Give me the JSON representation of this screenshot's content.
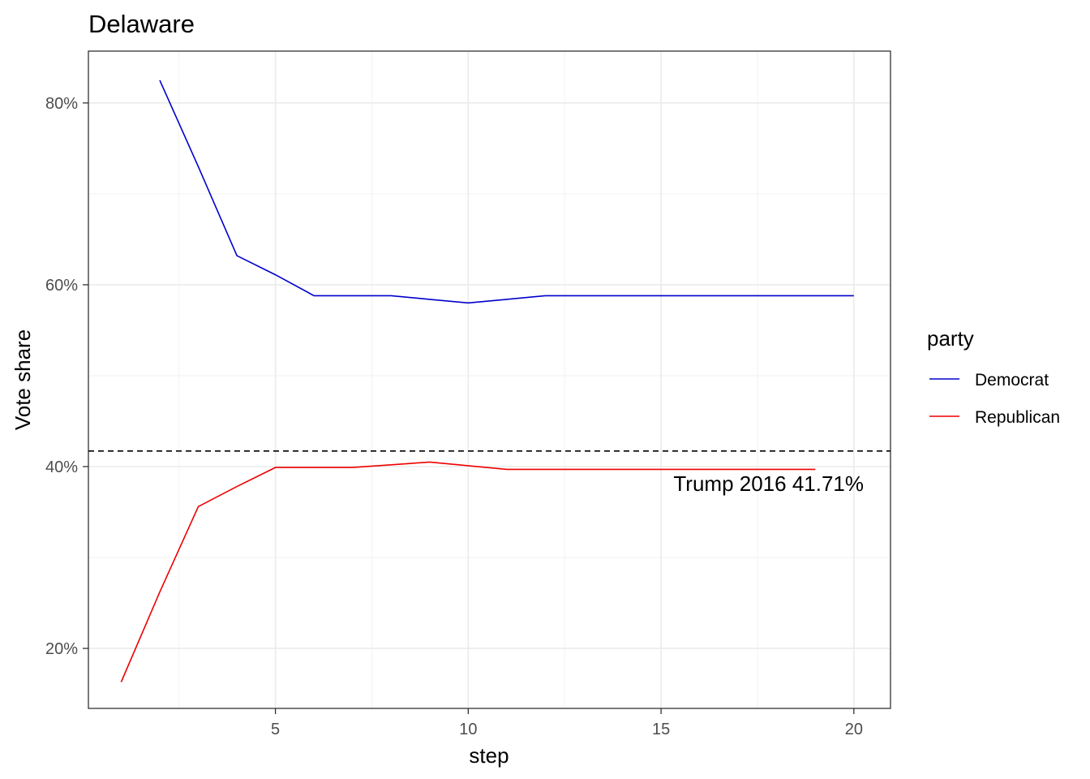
{
  "chart_data": {
    "type": "line",
    "title": "Delaware",
    "xlabel": "step",
    "ylabel": "Vote share",
    "xlim": [
      0.15,
      20.95
    ],
    "ylim": [
      0.134,
      0.857
    ],
    "x_ticks": [
      5,
      10,
      15,
      20
    ],
    "x_tick_labels": [
      "5",
      "10",
      "15",
      "20"
    ],
    "x_minor_ticks": [
      2.5,
      7.5,
      12.5,
      17.5
    ],
    "y_ticks": [
      0.2,
      0.4,
      0.6,
      0.8
    ],
    "y_tick_labels": [
      "20%",
      "40%",
      "60%",
      "80%"
    ],
    "y_minor_ticks": [
      0.3,
      0.5,
      0.7
    ],
    "grid": true,
    "legend": {
      "title": "party",
      "position": "right"
    },
    "series": [
      {
        "name": "Democrat",
        "color": "#0000cc",
        "x": [
          2,
          3,
          4,
          5,
          6,
          7,
          8,
          9,
          10,
          11,
          12,
          13,
          14,
          15,
          16,
          17,
          18,
          19,
          20
        ],
        "values": [
          0.825,
          0.73,
          0.632,
          0.611,
          0.588,
          0.588,
          0.588,
          0.584,
          0.58,
          0.584,
          0.588,
          0.588,
          0.588,
          0.588,
          0.588,
          0.588,
          0.588,
          0.588,
          0.588
        ]
      },
      {
        "name": "Republican",
        "color": "#ee0000",
        "x": [
          1,
          2,
          3,
          4,
          5,
          6,
          7,
          8,
          9,
          10,
          11,
          12,
          13,
          14,
          15,
          16,
          17,
          18,
          19
        ],
        "values": [
          0.163,
          0.262,
          0.356,
          0.378,
          0.399,
          0.399,
          0.399,
          0.402,
          0.405,
          0.401,
          0.397,
          0.397,
          0.397,
          0.397,
          0.397,
          0.397,
          0.397,
          0.397,
          0.397
        ]
      }
    ],
    "reference_line": {
      "y": 0.4171,
      "style": "dashed",
      "color": "#000000",
      "label": "Trump 2016 41.71%"
    }
  }
}
